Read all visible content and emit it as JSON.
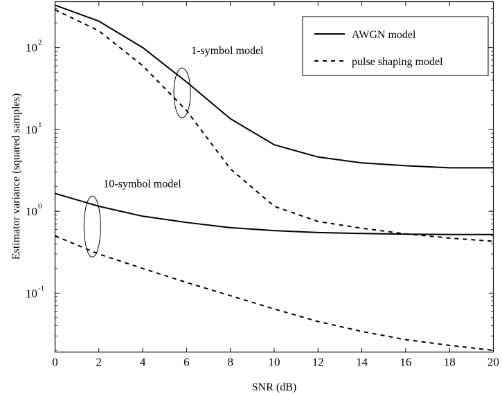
{
  "chart_data": {
    "type": "line",
    "xlabel": "SNR (dB)",
    "ylabel": "Estimator variance (squared samples)",
    "xlim": [
      0,
      20
    ],
    "ylim_log10": [
      -1.72,
      2.56
    ],
    "yscale": "log",
    "grid": false,
    "legend_position": "top-right",
    "x_ticks": [
      0,
      2,
      4,
      6,
      8,
      10,
      12,
      14,
      16,
      18,
      20
    ],
    "y_ticks": [
      {
        "value": 0.1,
        "base": "10",
        "exp": "-1"
      },
      {
        "value": 1,
        "base": "10",
        "exp": "0"
      },
      {
        "value": 10,
        "base": "10",
        "exp": "1"
      },
      {
        "value": 100,
        "base": "10",
        "exp": "2"
      }
    ],
    "legend": [
      {
        "label": "AWGN model",
        "style": "solid"
      },
      {
        "label": "pulse shaping model",
        "style": "dashed"
      }
    ],
    "annotations": [
      {
        "text": "1-symbol model",
        "x": 5.8,
        "y": 28
      },
      {
        "text": "10-symbol model",
        "x": 1.7,
        "y": 0.65
      }
    ],
    "series": [
      {
        "group": "1-symbol",
        "style": "solid",
        "x": [
          0,
          2,
          4,
          6,
          8,
          10,
          12,
          14,
          16,
          18,
          20
        ],
        "y": [
          330,
          210,
          100,
          38,
          13.5,
          6.5,
          4.6,
          3.9,
          3.6,
          3.4,
          3.4
        ]
      },
      {
        "group": "1-symbol",
        "style": "dashed",
        "x": [
          0,
          2,
          4,
          6,
          8,
          10,
          12,
          14,
          16,
          18,
          20
        ],
        "y": [
          290,
          160,
          60,
          17,
          3.3,
          1.15,
          0.75,
          0.62,
          0.53,
          0.47,
          0.43
        ]
      },
      {
        "group": "10-symbol",
        "style": "solid",
        "x": [
          0,
          2,
          4,
          6,
          8,
          10,
          12,
          14,
          16,
          18,
          20
        ],
        "y": [
          1.65,
          1.15,
          0.87,
          0.73,
          0.63,
          0.58,
          0.55,
          0.535,
          0.525,
          0.52,
          0.52
        ]
      },
      {
        "group": "10-symbol",
        "style": "dashed",
        "x": [
          0,
          2,
          4,
          6,
          8,
          10,
          12,
          14,
          16,
          18,
          20
        ],
        "y": [
          0.5,
          0.3,
          0.2,
          0.135,
          0.093,
          0.064,
          0.045,
          0.034,
          0.027,
          0.023,
          0.02
        ]
      }
    ]
  }
}
